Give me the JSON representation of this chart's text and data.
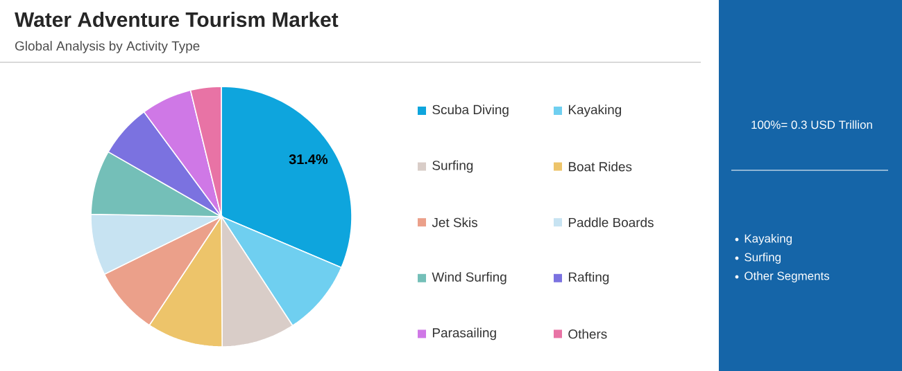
{
  "chart_data": {
    "type": "pie",
    "title": "Water Adventure Tourism Market",
    "subtitle": "Global Analysis by Activity Type",
    "categories": [
      "Scuba Diving",
      "Kayaking",
      "Surfing",
      "Boat Rides",
      "Jet Skis",
      "Paddle Boards",
      "Wind Surfing",
      "Rafting",
      "Parasailing",
      "Others"
    ],
    "values": [
      31.4,
      9.4,
      9.1,
      9.4,
      8.4,
      7.6,
      8.0,
      6.6,
      6.3,
      3.8
    ],
    "colors": [
      "#0ea5dd",
      "#6fcff0",
      "#d9cdc8",
      "#edc46a",
      "#eba08a",
      "#c7e3f2",
      "#74bfb8",
      "#7b72e0",
      "#cf78e6",
      "#e873a5"
    ],
    "value_labels": [
      "31.4%",
      null,
      null,
      null,
      null,
      null,
      null,
      null,
      null,
      null
    ],
    "legend": "right",
    "annotations": [
      "100%= 0.3 USD Trillion",
      "Kayaking",
      "Surfing",
      "Other Segments"
    ]
  }
}
